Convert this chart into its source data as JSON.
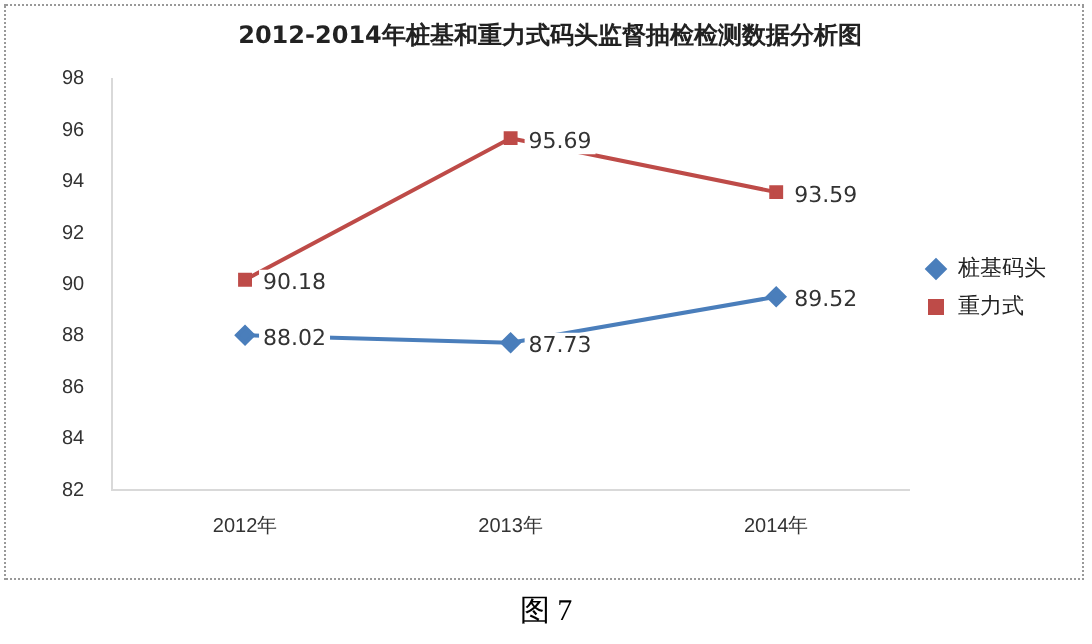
{
  "chart_data": {
    "type": "line",
    "title": "2012-2014年桩基和重力式码头监督抽检检测数据分析图",
    "categories": [
      "2012年",
      "2013年",
      "2014年"
    ],
    "series": [
      {
        "name": "桩基码头",
        "color": "#4a7ebb",
        "marker": "diamond",
        "values": [
          88.02,
          87.73,
          89.52
        ]
      },
      {
        "name": "重力式",
        "color": "#be4b48",
        "marker": "square",
        "values": [
          90.18,
          95.69,
          93.59
        ]
      }
    ],
    "ylim": [
      82,
      98
    ],
    "yticks": [
      82,
      84,
      86,
      88,
      90,
      92,
      94,
      96,
      98
    ],
    "grid": false,
    "legend": "right",
    "data_labels": true,
    "annotations": [
      "图 7"
    ]
  }
}
